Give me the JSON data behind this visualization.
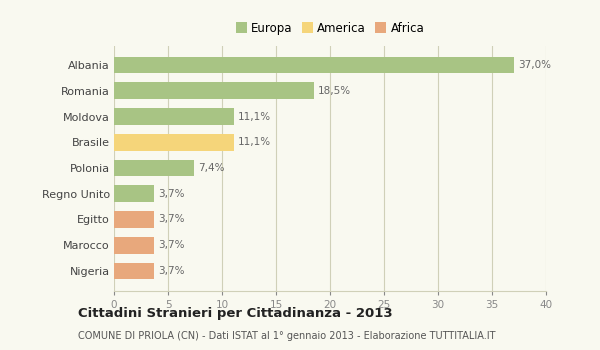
{
  "categories": [
    "Albania",
    "Romania",
    "Moldova",
    "Brasile",
    "Polonia",
    "Regno Unito",
    "Egitto",
    "Marocco",
    "Nigeria"
  ],
  "values": [
    37.0,
    18.5,
    11.1,
    11.1,
    7.4,
    3.7,
    3.7,
    3.7,
    3.7
  ],
  "labels": [
    "37,0%",
    "18,5%",
    "11,1%",
    "11,1%",
    "7,4%",
    "3,7%",
    "3,7%",
    "3,7%",
    "3,7%"
  ],
  "colors": [
    "#a8c484",
    "#a8c484",
    "#a8c484",
    "#f5d57a",
    "#a8c484",
    "#a8c484",
    "#e8a87c",
    "#e8a87c",
    "#e8a87c"
  ],
  "legend": {
    "Europa": "#a8c484",
    "America": "#f5d57a",
    "Africa": "#e8a87c"
  },
  "xlim": [
    0,
    40
  ],
  "xticks": [
    0,
    5,
    10,
    15,
    20,
    25,
    30,
    35,
    40
  ],
  "title": "Cittadini Stranieri per Cittadinanza - 2013",
  "subtitle": "COMUNE DI PRIOLA (CN) - Dati ISTAT al 1° gennaio 2013 - Elaborazione TUTTITALIA.IT",
  "background_color": "#f9f9f0",
  "grid_color": "#d0d0b8",
  "bar_height": 0.65,
  "label_fontsize": 7.5,
  "ytick_fontsize": 8.0,
  "xtick_fontsize": 7.5,
  "legend_fontsize": 8.5,
  "title_fontsize": 9.5,
  "subtitle_fontsize": 7.0
}
